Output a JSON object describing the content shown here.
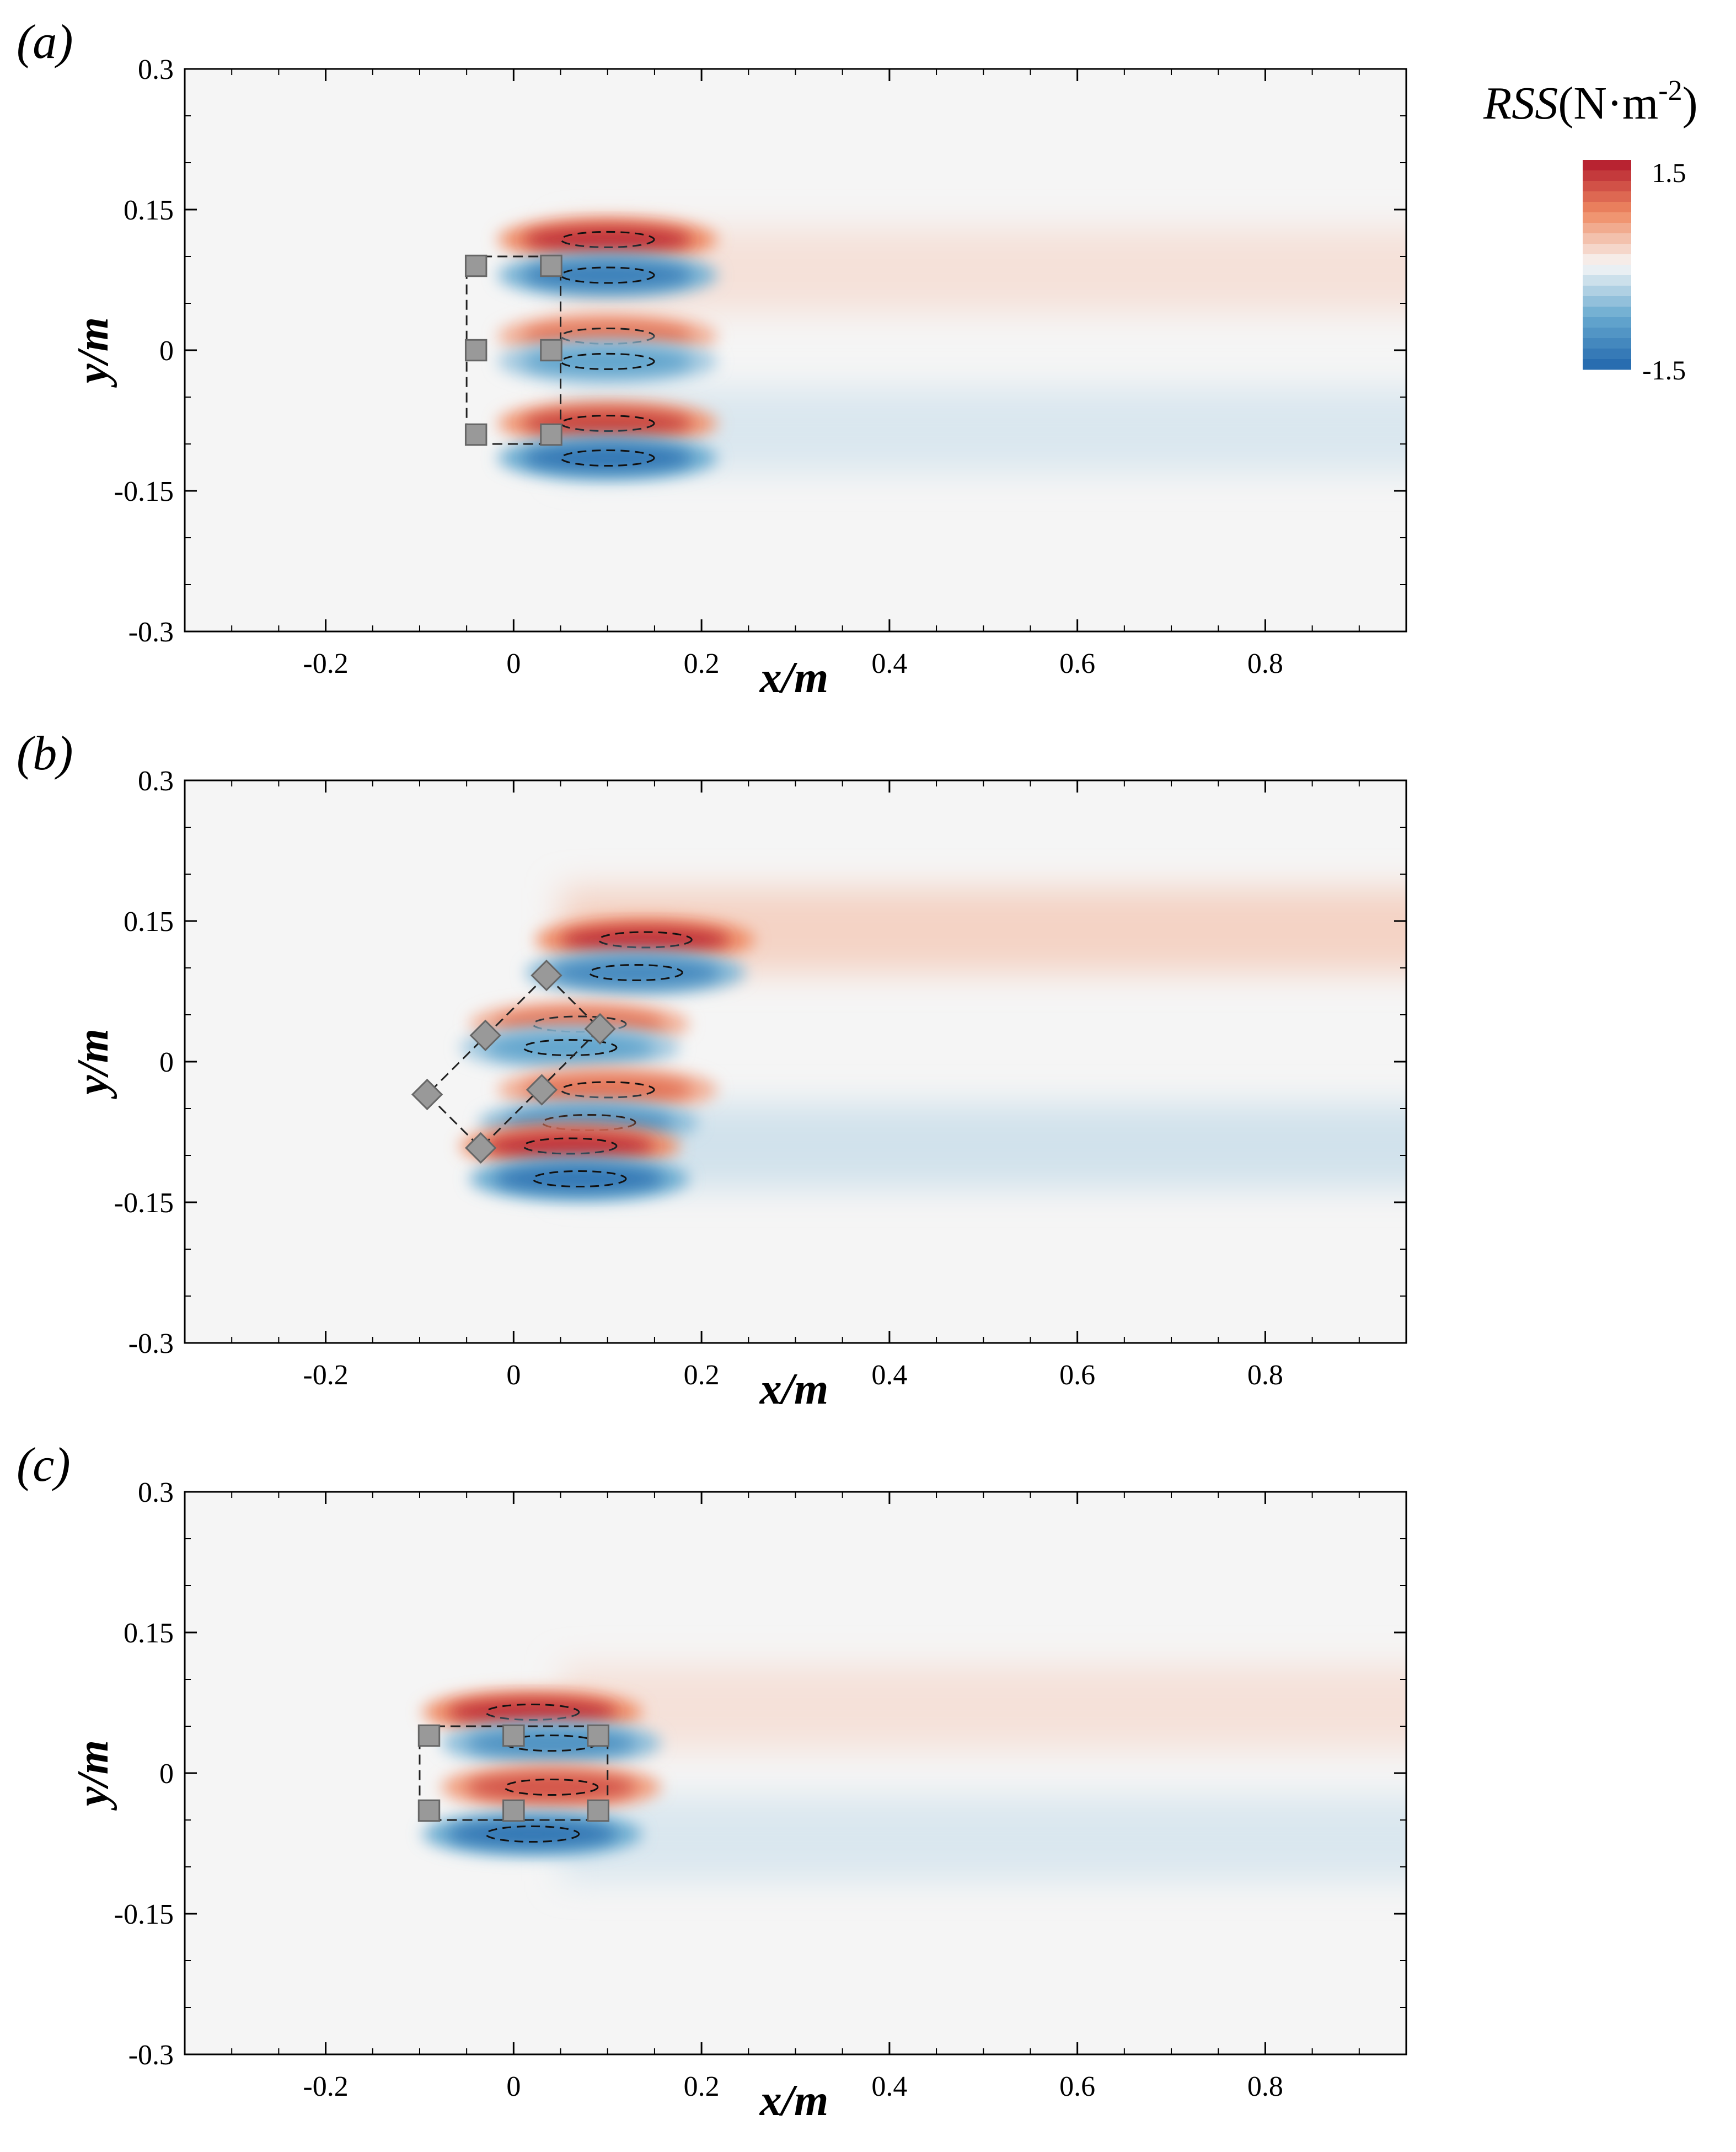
{
  "chart_data": [
    {
      "type": "heatmap",
      "panel_label": "(a)",
      "xlabel": "x/m",
      "ylabel": "y/m",
      "xlim": [
        -0.35,
        0.95
      ],
      "ylim": [
        -0.3,
        0.3
      ],
      "x_ticks": [
        -0.2,
        0,
        0.2,
        0.4,
        0.6,
        0.8
      ],
      "x_tick_labels": [
        "-0.2",
        "0",
        "0.2",
        "0.4",
        "0.6",
        "0.8"
      ],
      "y_ticks": [
        0.3,
        0.15,
        0,
        -0.15,
        -0.3
      ],
      "y_tick_labels": [
        "0.3",
        "0.15",
        "0",
        "-0.15",
        "-0.3"
      ],
      "cylinders": [
        [
          -0.04,
          0.09
        ],
        [
          0.04,
          0.09
        ],
        [
          -0.04,
          0.0
        ],
        [
          0.04,
          0.0
        ],
        [
          -0.04,
          -0.09
        ],
        [
          0.04,
          -0.09
        ]
      ],
      "cylinder_orientation_deg": 0,
      "dashed_outline": [
        [
          -0.05,
          0.1
        ],
        [
          0.05,
          0.1
        ],
        [
          0.05,
          -0.1
        ],
        [
          -0.05,
          -0.1
        ]
      ],
      "field_lobes": [
        {
          "x": 0.1,
          "y": 0.118,
          "value": 1.3
        },
        {
          "x": 0.1,
          "y": 0.08,
          "value": -1.2
        },
        {
          "x": 0.1,
          "y": 0.015,
          "value": 0.9
        },
        {
          "x": 0.1,
          "y": -0.012,
          "value": -0.8
        },
        {
          "x": 0.1,
          "y": -0.078,
          "value": 1.2
        },
        {
          "x": 0.1,
          "y": -0.115,
          "value": -1.3
        }
      ],
      "wake": [
        {
          "y_center": 0.085,
          "value": 0.15,
          "extent_x": 0.95
        },
        {
          "y_center": -0.085,
          "value": -0.15,
          "extent_x": 0.95
        }
      ]
    },
    {
      "type": "heatmap",
      "panel_label": "(b)",
      "xlabel": "x/m",
      "ylabel": "y/m",
      "xlim": [
        -0.35,
        0.95
      ],
      "ylim": [
        -0.3,
        0.3
      ],
      "x_ticks": [
        -0.2,
        0,
        0.2,
        0.4,
        0.6,
        0.8
      ],
      "x_tick_labels": [
        "-0.2",
        "0",
        "0.2",
        "0.4",
        "0.6",
        "0.8"
      ],
      "y_ticks": [
        0.3,
        0.15,
        0,
        -0.15,
        -0.3
      ],
      "y_tick_labels": [
        "0.3",
        "0.15",
        "0",
        "-0.15",
        "-0.3"
      ],
      "cylinders": [
        [
          0.035,
          0.092
        ],
        [
          0.092,
          0.035
        ],
        [
          -0.03,
          0.028
        ],
        [
          0.03,
          -0.03
        ],
        [
          -0.092,
          -0.035
        ],
        [
          -0.035,
          -0.092
        ]
      ],
      "cylinder_orientation_deg": 45,
      "dashed_outline": [
        [
          0.035,
          0.092
        ],
        [
          0.092,
          0.035
        ],
        [
          -0.035,
          -0.092
        ],
        [
          -0.092,
          -0.035
        ]
      ],
      "field_lobes": [
        {
          "x": 0.14,
          "y": 0.13,
          "value": 1.3
        },
        {
          "x": 0.13,
          "y": 0.095,
          "value": -1.1
        },
        {
          "x": 0.07,
          "y": 0.04,
          "value": 0.9
        },
        {
          "x": 0.06,
          "y": 0.015,
          "value": -0.8
        },
        {
          "x": 0.1,
          "y": -0.03,
          "value": 0.9
        },
        {
          "x": 0.08,
          "y": -0.065,
          "value": -1.0
        },
        {
          "x": 0.06,
          "y": -0.09,
          "value": 1.3
        },
        {
          "x": 0.07,
          "y": -0.125,
          "value": -1.3
        }
      ],
      "wake": [
        {
          "y_center": 0.14,
          "value": 0.25,
          "extent_x": 0.95
        },
        {
          "y_center": -0.09,
          "value": -0.2,
          "extent_x": 0.95
        }
      ]
    },
    {
      "type": "heatmap",
      "panel_label": "(c)",
      "xlabel": "x/m",
      "ylabel": "y/m",
      "xlim": [
        -0.35,
        0.95
      ],
      "ylim": [
        -0.3,
        0.3
      ],
      "x_ticks": [
        -0.2,
        0,
        0.2,
        0.4,
        0.6,
        0.8
      ],
      "x_tick_labels": [
        "-0.2",
        "0",
        "0.2",
        "0.4",
        "0.6",
        "0.8"
      ],
      "y_ticks": [
        0.3,
        0.15,
        0,
        -0.15,
        -0.3
      ],
      "y_tick_labels": [
        "0.3",
        "0.15",
        "0",
        "-0.15",
        "-0.3"
      ],
      "cylinders": [
        [
          -0.09,
          0.04
        ],
        [
          0.0,
          0.04
        ],
        [
          0.09,
          0.04
        ],
        [
          -0.09,
          -0.04
        ],
        [
          0.0,
          -0.04
        ],
        [
          0.09,
          -0.04
        ]
      ],
      "cylinder_orientation_deg": 0,
      "dashed_outline": [
        [
          -0.1,
          0.05
        ],
        [
          0.1,
          0.05
        ],
        [
          0.1,
          -0.05
        ],
        [
          -0.1,
          -0.05
        ]
      ],
      "field_lobes": [
        {
          "x": 0.02,
          "y": 0.065,
          "value": 1.3
        },
        {
          "x": 0.04,
          "y": 0.032,
          "value": -1.0
        },
        {
          "x": 0.04,
          "y": -0.015,
          "value": 1.1
        },
        {
          "x": 0.02,
          "y": -0.065,
          "value": -1.3
        }
      ],
      "wake": [
        {
          "y_center": 0.07,
          "value": 0.15,
          "extent_x": 0.95
        },
        {
          "y_center": -0.07,
          "value": -0.15,
          "extent_x": 0.95
        }
      ]
    }
  ],
  "colorbar": {
    "variable": "RSS",
    "unit_open": "(N·m",
    "unit_exponent": "-2",
    "unit_close": ")",
    "max_label": "1.5",
    "min_label": "-1.5",
    "range": [
      -1.5,
      1.5
    ],
    "levels": 20,
    "colors": {
      "neg_strong": "#2166ac",
      "neg_mid": "#67a9cf",
      "neutral": "#f7f7f7",
      "pos_mid": "#ef8a62",
      "pos_strong": "#b2182b"
    }
  },
  "colors": {
    "cylinder_fill": "#999999",
    "cylinder_edge": "#666666",
    "background_field": "#f5f5f5"
  }
}
